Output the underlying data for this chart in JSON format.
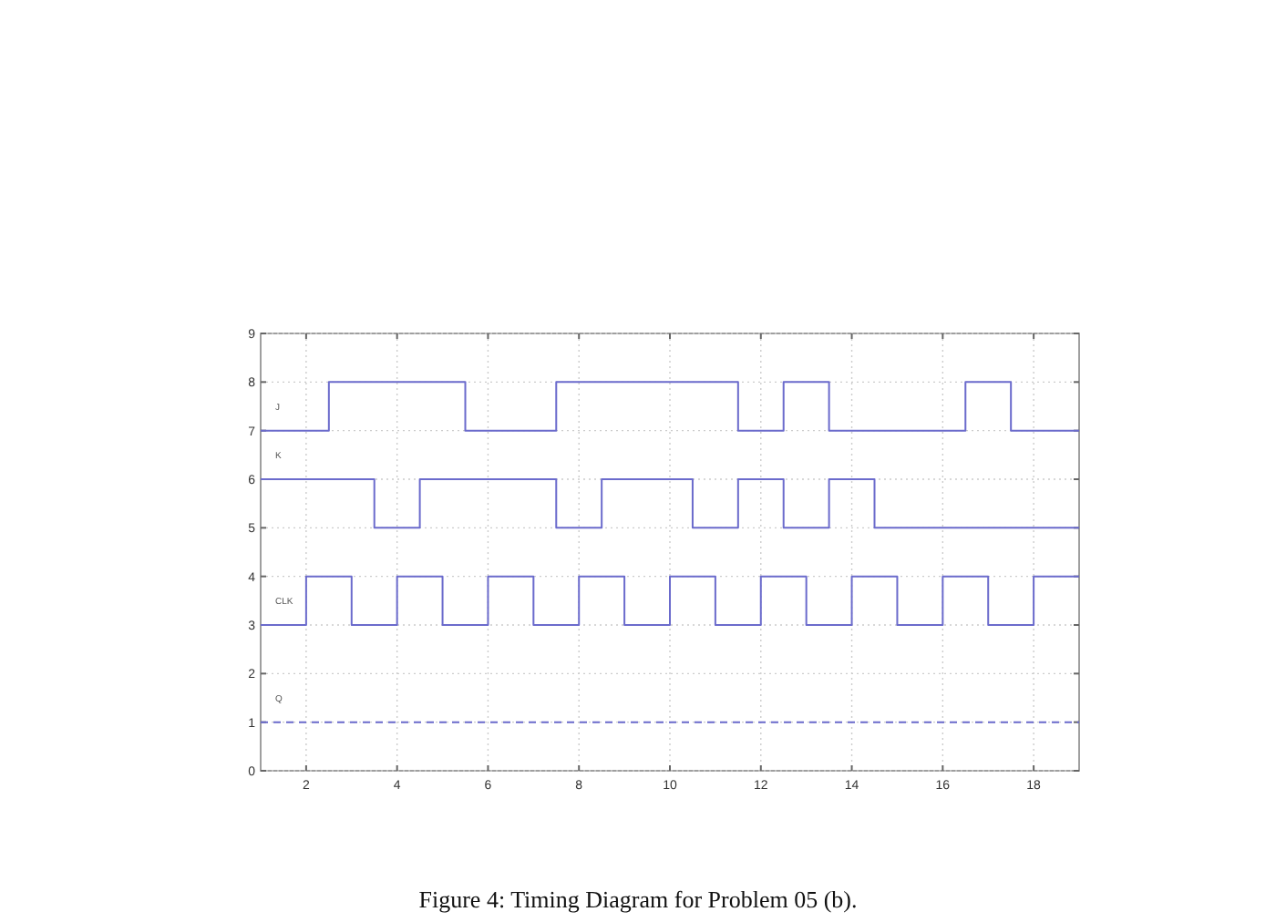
{
  "chart_data": {
    "type": "step",
    "xlim": [
      1,
      19
    ],
    "ylim": [
      0,
      9
    ],
    "xticks": [
      2,
      4,
      6,
      8,
      10,
      12,
      14,
      16,
      18
    ],
    "yticks": [
      0,
      1,
      2,
      3,
      4,
      5,
      6,
      7,
      8,
      9
    ],
    "grid": true,
    "annotations": [
      "Figure 4: Timing Diagram for Problem 05 (b)."
    ],
    "series": [
      {
        "name": "J",
        "color": "#6b6bcc",
        "x": [
          1,
          2.5,
          5.5,
          7.5,
          11.5,
          12.5,
          13.5,
          16.5,
          17.5,
          19
        ],
        "values": [
          7,
          8,
          7,
          8,
          7,
          8,
          7,
          8,
          7,
          7
        ]
      },
      {
        "name": "K",
        "color": "#6b6bcc",
        "x": [
          1,
          3.5,
          4.5,
          7.5,
          8.5,
          10.5,
          11.5,
          12.5,
          13.5,
          14.5,
          19
        ],
        "values": [
          6,
          5,
          6,
          5,
          6,
          5,
          6,
          5,
          6,
          5,
          5
        ]
      },
      {
        "name": "CLK",
        "color": "#6b6bcc",
        "x": [
          1,
          2,
          3,
          4,
          5,
          6,
          7,
          8,
          9,
          10,
          11,
          12,
          13,
          14,
          15,
          16,
          17,
          18,
          19
        ],
        "values": [
          3,
          4,
          3,
          4,
          3,
          4,
          3,
          4,
          3,
          4,
          3,
          4,
          3,
          4,
          3,
          4,
          3,
          4,
          4
        ]
      },
      {
        "name": "Q",
        "color": "#6b6bcc",
        "line_style": "dashed",
        "x": [
          1,
          19
        ],
        "values": [
          1,
          1
        ]
      }
    ]
  }
}
